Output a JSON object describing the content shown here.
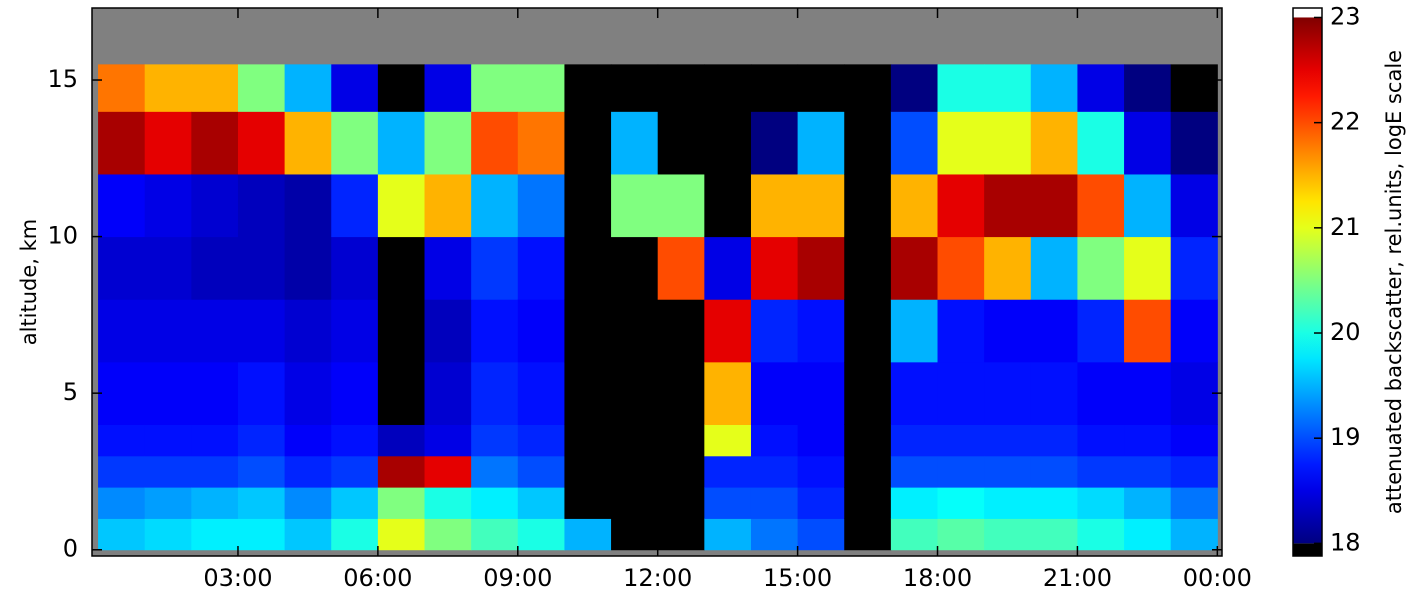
{
  "chart_data": {
    "type": "heatmap",
    "y_label": "altitude, km",
    "xlim": [
      -0.13,
      24.1
    ],
    "xticks": [
      {
        "value": 3,
        "label": "03:00"
      },
      {
        "value": 6,
        "label": "06:00"
      },
      {
        "value": 9,
        "label": "09:00"
      },
      {
        "value": 12,
        "label": "12:00"
      },
      {
        "value": 15,
        "label": "15:00"
      },
      {
        "value": 18,
        "label": "18:00"
      },
      {
        "value": 21,
        "label": "21:00"
      },
      {
        "value": 24,
        "label": "00:00"
      }
    ],
    "ylim": [
      -0.2,
      17.3
    ],
    "yticks": [
      0,
      5,
      10,
      15
    ],
    "x_edges": [
      0,
      1,
      2,
      3,
      4,
      5,
      6,
      7,
      8,
      9,
      10,
      11,
      12,
      13,
      14,
      15,
      16,
      17,
      18,
      19,
      20,
      21,
      22,
      23,
      24
    ],
    "y_edges": [
      0,
      1,
      2,
      3,
      4,
      6,
      8,
      10,
      12,
      14,
      15.5
    ],
    "z": [
      [
        19.6,
        19.3,
        18.9,
        18.7,
        18.6,
        18.5,
        18.4,
        18.6,
        22.8,
        21.8
      ],
      [
        19.7,
        19.4,
        18.9,
        18.7,
        18.6,
        18.5,
        18.4,
        18.5,
        22.5,
        21.5
      ],
      [
        19.8,
        19.5,
        18.9,
        18.7,
        18.6,
        18.5,
        18.3,
        18.4,
        22.8,
        21.5
      ],
      [
        19.8,
        19.6,
        19.0,
        18.8,
        18.7,
        18.5,
        18.3,
        18.3,
        22.5,
        20.5
      ],
      [
        19.6,
        19.3,
        18.8,
        18.6,
        18.5,
        18.4,
        18.2,
        18.2,
        21.5,
        19.5
      ],
      [
        20.0,
        19.6,
        18.9,
        18.7,
        18.6,
        18.5,
        18.4,
        18.8,
        20.5,
        18.5
      ],
      [
        21.0,
        20.5,
        22.8,
        18.3,
        17.8,
        17.6,
        17.5,
        21.0,
        19.5,
        17.5
      ],
      [
        20.5,
        20.0,
        22.5,
        18.5,
        18.4,
        18.3,
        18.5,
        21.5,
        20.5,
        18.5
      ],
      [
        20.2,
        19.8,
        19.2,
        18.9,
        18.8,
        18.7,
        18.9,
        19.5,
        22.0,
        20.5
      ],
      [
        20.0,
        19.6,
        19.0,
        18.8,
        18.7,
        18.6,
        18.7,
        19.2,
        21.8,
        20.5
      ],
      [
        19.5,
        17.5,
        17.3,
        17.3,
        17.3,
        17.3,
        17.3,
        17.3,
        17.3,
        17.3
      ],
      [
        17.8,
        17.5,
        17.3,
        17.3,
        17.3,
        17.3,
        17.4,
        20.5,
        19.5,
        17.5
      ],
      [
        17.5,
        17.4,
        17.3,
        17.3,
        17.3,
        17.5,
        22.0,
        20.5,
        17.8,
        17.4
      ],
      [
        19.5,
        19.0,
        18.8,
        21.0,
        21.5,
        22.5,
        18.5,
        17.5,
        17.3,
        17.3
      ],
      [
        19.2,
        19.0,
        18.8,
        18.7,
        18.6,
        18.8,
        22.5,
        21.5,
        18.0,
        17.5
      ],
      [
        19.0,
        18.8,
        18.7,
        18.6,
        18.6,
        18.7,
        22.8,
        21.5,
        19.5,
        17.5
      ],
      [
        17.3,
        17.3,
        17.3,
        17.3,
        17.3,
        17.3,
        17.3,
        17.3,
        17.3,
        17.3
      ],
      [
        20.2,
        19.8,
        19.0,
        18.8,
        18.7,
        19.5,
        22.8,
        21.5,
        19.0,
        18.0
      ],
      [
        20.3,
        19.9,
        19.0,
        18.8,
        18.7,
        18.7,
        22.0,
        22.5,
        21.0,
        20.0
      ],
      [
        20.2,
        19.8,
        19.0,
        18.8,
        18.7,
        18.6,
        21.5,
        22.8,
        21.0,
        20.0
      ],
      [
        20.2,
        19.8,
        19.0,
        18.8,
        18.7,
        18.6,
        19.5,
        22.8,
        21.5,
        19.5
      ],
      [
        20.0,
        19.7,
        18.9,
        18.7,
        18.6,
        18.8,
        20.5,
        22.0,
        20.0,
        18.5
      ],
      [
        19.8,
        19.5,
        18.9,
        18.7,
        18.6,
        22.0,
        21.0,
        19.5,
        18.5,
        18.0
      ],
      [
        19.5,
        19.2,
        18.8,
        18.6,
        18.5,
        18.6,
        18.8,
        18.5,
        18.0,
        17.5
      ]
    ],
    "nan_color": "#808080",
    "colorbar": {
      "label": "attenuated backscatter, rel.units, logE scale",
      "colormap": "jet",
      "clim": [
        18,
        23
      ],
      "lim": [
        17.88,
        23.09
      ],
      "ticks": [
        18,
        19,
        20,
        21,
        22,
        23
      ],
      "under_color": "#000000",
      "over_color": "#ffffff"
    }
  }
}
